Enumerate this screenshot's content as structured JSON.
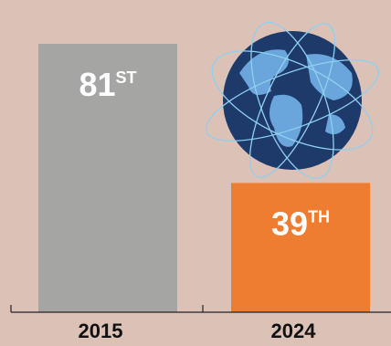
{
  "chart_data": {
    "type": "bar",
    "categories": [
      "2015",
      "2024"
    ],
    "values": [
      81,
      39
    ],
    "value_labels": [
      "81ST",
      "39TH"
    ],
    "colors": [
      "#a5a6a4",
      "#ee7d31"
    ]
  }
}
